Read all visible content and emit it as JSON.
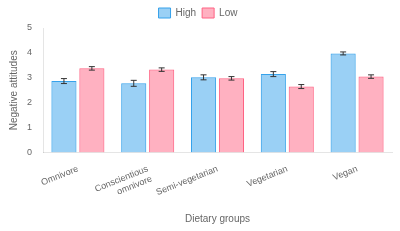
{
  "chart_data": {
    "type": "bar",
    "xlabel": "Dietary groups",
    "ylabel": "Negative attitudes",
    "categories": [
      "Omnivore",
      "Conscientious\nomnivore",
      "Semi-vegetarian",
      "Vegetarian",
      "Vegan"
    ],
    "series": [
      {
        "name": "High",
        "values": [
          2.87,
          2.78,
          3.02,
          3.15,
          3.98
        ],
        "errors": [
          0.1,
          0.12,
          0.1,
          0.1,
          0.06
        ]
      },
      {
        "name": "Low",
        "values": [
          3.38,
          3.33,
          2.98,
          2.65,
          3.05
        ],
        "errors": [
          0.07,
          0.07,
          0.07,
          0.08,
          0.07
        ]
      }
    ],
    "ylim": [
      0,
      5
    ],
    "yticks": [
      0,
      1,
      2,
      3,
      4,
      5
    ],
    "grid": false,
    "legend": "top"
  }
}
